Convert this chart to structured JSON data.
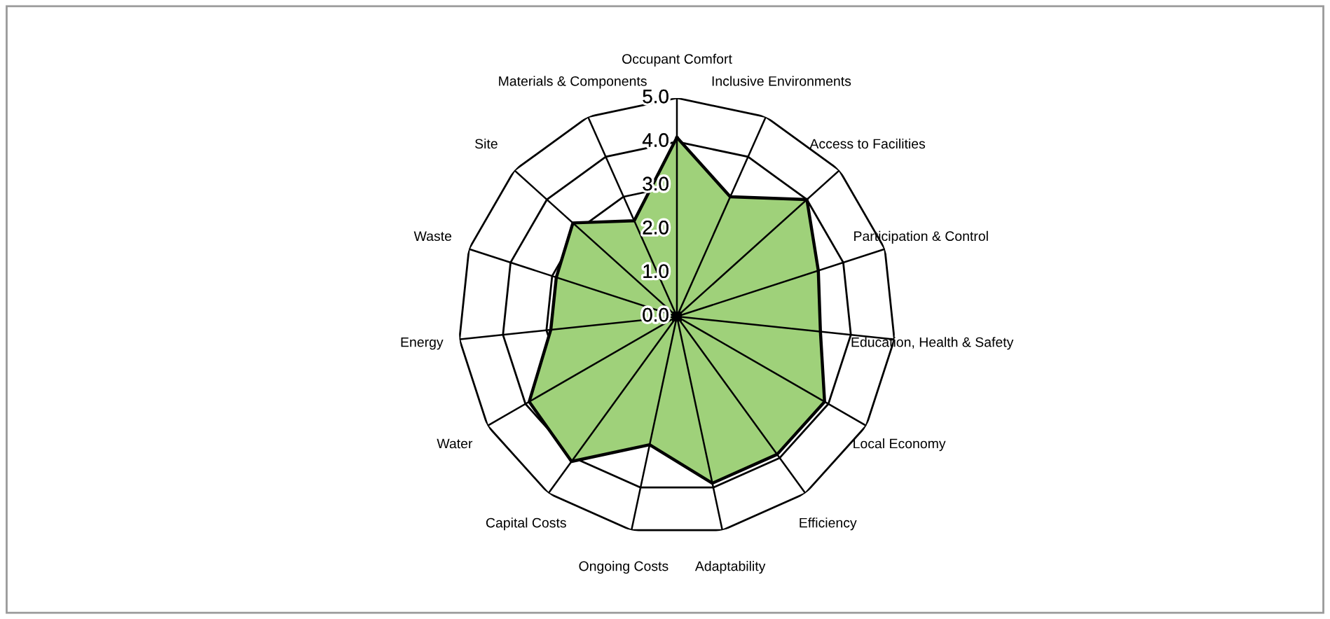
{
  "chart_data": {
    "type": "radar",
    "categories": [
      "Occupant Comfort",
      "Inclusive Environments",
      "Access to Facilities",
      "Participation & Control",
      "Education, Health & Safety",
      "Local Economy",
      "Efficiency",
      "Adaptability",
      "Ongoing Costs",
      "Capital Costs",
      "Water",
      "Energy",
      "Waste",
      "Site",
      "Materials & Components"
    ],
    "series": [
      {
        "color": "#9fd17a",
        "values": [
          4.1,
          3.0,
          4.0,
          3.4,
          3.3,
          3.9,
          3.9,
          3.9,
          3.0,
          4.1,
          3.9,
          2.9,
          2.9,
          3.2,
          2.4
        ]
      }
    ],
    "ylim": [
      0,
      5
    ],
    "yticks": [
      {
        "value": 0,
        "label": "0.0"
      },
      {
        "value": 1,
        "label": "1.0"
      },
      {
        "value": 2,
        "label": "2.0"
      },
      {
        "value": 3,
        "label": "3.0"
      },
      {
        "value": 4,
        "label": "4.0"
      },
      {
        "value": 5,
        "label": "5.0"
      }
    ],
    "grid": true
  }
}
